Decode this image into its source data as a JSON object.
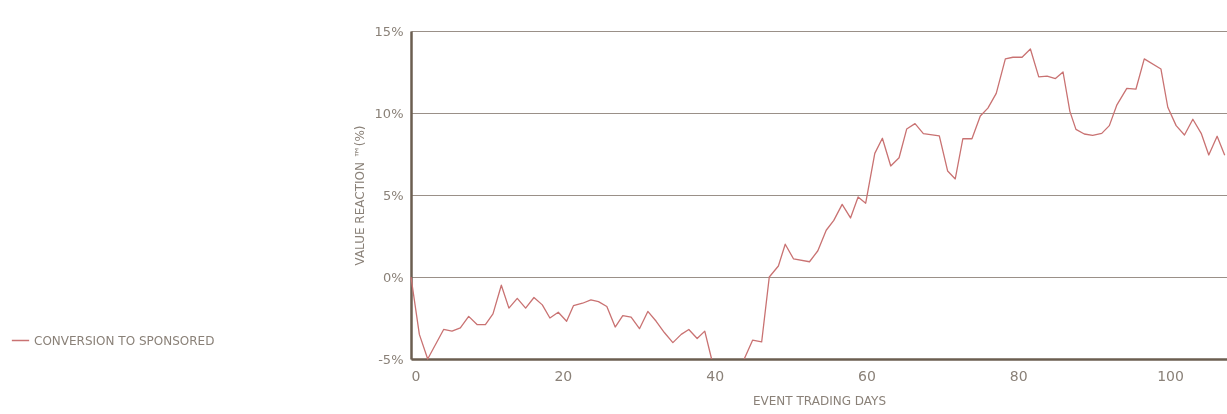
{
  "chart_data": {
    "type": "line",
    "xlabel": "EVENT TRADING DAYS",
    "ylabel": "VALUE REACTION ™(%)",
    "x": [
      0,
      1.1,
      2.2,
      4.3,
      5.4,
      6.5,
      7.6,
      8.7,
      9.8,
      10.8,
      11.9,
      12.9,
      14,
      15.1,
      16.2,
      17.3,
      18.3,
      19.4,
      20.5,
      21.4,
      22.6,
      23.7,
      24.7,
      25.8,
      26.9,
      27.9,
      29,
      30.1,
      31.2,
      32.3,
      33.4,
      34.5,
      35.6,
      36.6,
      37.7,
      38.7,
      39.6,
      41.7,
      43.9,
      45,
      46.2,
      47.2,
      48.4,
      49.3,
      50.4,
      52.5,
      53.6,
      54.7,
      55.7,
      56.8,
      57.9,
      58.9,
      59.9,
      61.1,
      62.1,
      63.2,
      64.3,
      65.3,
      66.4,
      67.5,
      69.6,
      70.7,
      71.7,
      72.7,
      73.9,
      75,
      76,
      77.1,
      78.3,
      79.3,
      80.5,
      81.6,
      82.7,
      83.8,
      84.9,
      85.9,
      86.8,
      87.6,
      88.7,
      89.8,
      91,
      92,
      93,
      94.3,
      95.5,
      96.6,
      98.8,
      99.7,
      100.8,
      101.9,
      103,
      104.1,
      105.1,
      106.2,
      107.2
    ],
    "series": [
      {
        "name": "CONVERSION TO SPONSORED",
        "color": "#c97272",
        "values": [
          0,
          -3.5,
          -5,
          -3.2,
          -3.3,
          -3.1,
          -2.4,
          -2.9,
          -2.9,
          -2.25,
          -0.5,
          -1.9,
          -1.3,
          -1.9,
          -1.25,
          -1.7,
          -2.5,
          -2.15,
          -2.7,
          -1.75,
          -1.6,
          -1.4,
          -1.5,
          -1.8,
          -3.05,
          -2.35,
          -2.45,
          -3.15,
          -2.1,
          -2.7,
          -3.4,
          -4,
          -3.5,
          -3.2,
          -3.75,
          -3.3,
          -5,
          null,
          -5,
          -3.85,
          -3.95,
          0,
          0.67,
          2,
          1.1,
          0.93,
          1.6,
          2.85,
          3.45,
          4.43,
          3.6,
          4.88,
          4.5,
          7.54,
          8.46,
          6.77,
          7.27,
          9.02,
          9.35,
          8.74,
          8.6,
          6.46,
          5.98,
          8.43,
          8.43,
          9.82,
          10.3,
          11.2,
          13.3,
          13.4,
          13.4,
          13.9,
          12.2,
          12.25,
          12.1,
          12.5,
          10.1,
          9,
          8.72,
          8.64,
          8.76,
          9.23,
          10.5,
          11.5,
          11.45,
          13.3,
          12.68,
          10.35,
          9.23,
          8.66,
          9.62,
          8.76,
          7.44,
          8.58,
          7.42
        ]
      }
    ],
    "xlim": [
      0,
      107.5
    ],
    "xticks": [
      0,
      20,
      40,
      60,
      80,
      100
    ],
    "ylim": [
      -5,
      15
    ],
    "yticks": [
      {
        "value": -5,
        "label": "-5%"
      },
      {
        "value": 0,
        "label": "0%"
      },
      {
        "value": 5,
        "label": "5%"
      },
      {
        "value": 10,
        "label": "10%"
      },
      {
        "value": 15,
        "label": "15%"
      }
    ],
    "grid": "y",
    "legend": "left",
    "marker": "none",
    "line_style": "solid"
  }
}
